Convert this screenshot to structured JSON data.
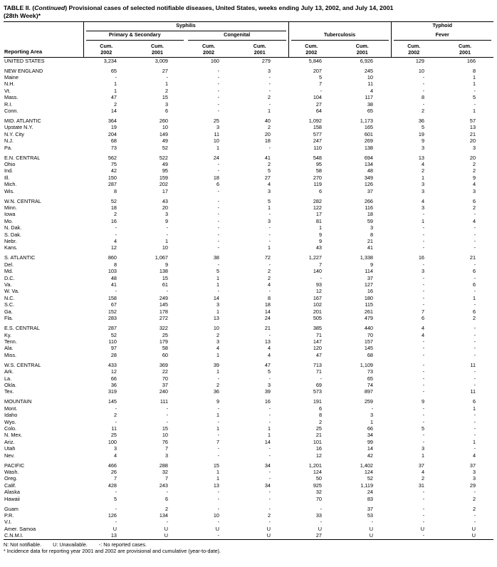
{
  "title": {
    "line1_pre": "TABLE II. (",
    "line1_italic": "Continued",
    "line1_post": ") Provisional cases of selected notifiable diseases, United States, weeks ending July 13, 2002, and July 14, 2001",
    "line2": "(28th Week)*"
  },
  "table": {
    "reporting_area_label": "Reporting Area",
    "groups": {
      "syphilis": "Syphilis",
      "primary_secondary": "Primary & Secondary",
      "congenital": "Congenital",
      "tuberculosis": "Tuberculosis",
      "typhoid_line1": "Typhoid",
      "typhoid_line2": "Fever"
    },
    "col_header": {
      "cum": "Cum.",
      "years": [
        "2002",
        "2001",
        "2002",
        "2001",
        "2002",
        "2001",
        "2002",
        "2001"
      ]
    },
    "rows": [
      {
        "area": "UNITED STATES",
        "section": true,
        "values": [
          "3,234",
          "3,009",
          "160",
          "279",
          "5,846",
          "6,926",
          "129",
          "166"
        ]
      },
      {
        "area": "NEW ENGLAND",
        "section": true,
        "spacer": true,
        "values": [
          "65",
          "27",
          "-",
          "3",
          "207",
          "245",
          "10",
          "8"
        ]
      },
      {
        "area": "Maine",
        "values": [
          "-",
          "-",
          "-",
          "-",
          "5",
          "10",
          "-",
          "1"
        ]
      },
      {
        "area": "N.H.",
        "values": [
          "1",
          "1",
          "-",
          "-",
          "7",
          "11",
          "-",
          "1"
        ]
      },
      {
        "area": "Vt.",
        "values": [
          "1",
          "2",
          "-",
          "-",
          "-",
          "4",
          "-",
          "-"
        ]
      },
      {
        "area": "Mass.",
        "values": [
          "47",
          "15",
          "-",
          "2",
          "104",
          "117",
          "8",
          "5"
        ]
      },
      {
        "area": "R.I.",
        "values": [
          "2",
          "3",
          "-",
          "-",
          "27",
          "38",
          "-",
          "-"
        ]
      },
      {
        "area": "Conn.",
        "values": [
          "14",
          "6",
          "-",
          "1",
          "64",
          "65",
          "2",
          "1"
        ]
      },
      {
        "area": "MID. ATLANTIC",
        "section": true,
        "spacer": true,
        "values": [
          "364",
          "260",
          "25",
          "40",
          "1,092",
          "1,173",
          "36",
          "57"
        ]
      },
      {
        "area": "Upstate N.Y.",
        "values": [
          "19",
          "10",
          "3",
          "2",
          "158",
          "165",
          "5",
          "13"
        ]
      },
      {
        "area": "N.Y. City",
        "values": [
          "204",
          "149",
          "11",
          "20",
          "577",
          "601",
          "19",
          "21"
        ]
      },
      {
        "area": "N.J.",
        "values": [
          "68",
          "49",
          "10",
          "18",
          "247",
          "269",
          "9",
          "20"
        ]
      },
      {
        "area": "Pa.",
        "values": [
          "73",
          "52",
          "1",
          "-",
          "110",
          "138",
          "3",
          "3"
        ]
      },
      {
        "area": "E.N. CENTRAL",
        "section": true,
        "spacer": true,
        "values": [
          "562",
          "522",
          "24",
          "41",
          "548",
          "694",
          "13",
          "20"
        ]
      },
      {
        "area": "Ohio",
        "values": [
          "75",
          "49",
          "-",
          "2",
          "95",
          "134",
          "4",
          "2"
        ]
      },
      {
        "area": "Ind.",
        "values": [
          "42",
          "95",
          "-",
          "5",
          "58",
          "48",
          "2",
          "2"
        ]
      },
      {
        "area": "Ill.",
        "values": [
          "150",
          "159",
          "18",
          "27",
          "270",
          "349",
          "1",
          "9"
        ]
      },
      {
        "area": "Mich.",
        "values": [
          "287",
          "202",
          "6",
          "4",
          "119",
          "126",
          "3",
          "4"
        ]
      },
      {
        "area": "Wis.",
        "values": [
          "8",
          "17",
          "-",
          "3",
          "6",
          "37",
          "3",
          "3"
        ]
      },
      {
        "area": "W.N. CENTRAL",
        "section": true,
        "spacer": true,
        "values": [
          "52",
          "43",
          "-",
          "5",
          "282",
          "266",
          "4",
          "6"
        ]
      },
      {
        "area": "Minn.",
        "values": [
          "18",
          "20",
          "-",
          "1",
          "122",
          "116",
          "3",
          "2"
        ]
      },
      {
        "area": "Iowa",
        "values": [
          "2",
          "3",
          "-",
          "-",
          "17",
          "18",
          "-",
          "-"
        ]
      },
      {
        "area": "Mo.",
        "values": [
          "16",
          "9",
          "-",
          "3",
          "81",
          "59",
          "1",
          "4"
        ]
      },
      {
        "area": "N. Dak.",
        "values": [
          "-",
          "-",
          "-",
          "-",
          "1",
          "3",
          "-",
          "-"
        ]
      },
      {
        "area": "S. Dak.",
        "values": [
          "-",
          "-",
          "-",
          "-",
          "9",
          "8",
          "-",
          "-"
        ]
      },
      {
        "area": "Nebr.",
        "values": [
          "4",
          "1",
          "-",
          "-",
          "9",
          "21",
          "-",
          "-"
        ]
      },
      {
        "area": "Kans.",
        "values": [
          "12",
          "10",
          "-",
          "1",
          "43",
          "41",
          "-",
          "-"
        ]
      },
      {
        "area": "S. ATLANTIC",
        "section": true,
        "spacer": true,
        "values": [
          "860",
          "1,067",
          "38",
          "72",
          "1,227",
          "1,338",
          "16",
          "21"
        ]
      },
      {
        "area": "Del.",
        "values": [
          "8",
          "9",
          "-",
          "-",
          "7",
          "9",
          "-",
          "-"
        ]
      },
      {
        "area": "Md.",
        "values": [
          "103",
          "138",
          "5",
          "2",
          "140",
          "114",
          "3",
          "6"
        ]
      },
      {
        "area": "D.C.",
        "values": [
          "48",
          "15",
          "1",
          "2",
          "-",
          "37",
          "-",
          "-"
        ]
      },
      {
        "area": "Va.",
        "values": [
          "41",
          "61",
          "1",
          "4",
          "93",
          "127",
          "-",
          "6"
        ]
      },
      {
        "area": "W. Va.",
        "values": [
          "-",
          "-",
          "-",
          "-",
          "12",
          "16",
          "-",
          "-"
        ]
      },
      {
        "area": "N.C.",
        "values": [
          "158",
          "249",
          "14",
          "8",
          "167",
          "180",
          "-",
          "1"
        ]
      },
      {
        "area": "S.C.",
        "values": [
          "67",
          "145",
          "3",
          "18",
          "102",
          "115",
          "-",
          "-"
        ]
      },
      {
        "area": "Ga.",
        "values": [
          "152",
          "178",
          "1",
          "14",
          "201",
          "261",
          "7",
          "6"
        ]
      },
      {
        "area": "Fla.",
        "values": [
          "283",
          "272",
          "13",
          "24",
          "505",
          "479",
          "6",
          "2"
        ]
      },
      {
        "area": "E.S. CENTRAL",
        "section": true,
        "spacer": true,
        "values": [
          "287",
          "322",
          "10",
          "21",
          "385",
          "440",
          "4",
          "-"
        ]
      },
      {
        "area": "Ky.",
        "values": [
          "52",
          "25",
          "2",
          "-",
          "71",
          "70",
          "4",
          "-"
        ]
      },
      {
        "area": "Tenn.",
        "values": [
          "110",
          "179",
          "3",
          "13",
          "147",
          "157",
          "-",
          "-"
        ]
      },
      {
        "area": "Ala.",
        "values": [
          "97",
          "58",
          "4",
          "4",
          "120",
          "145",
          "-",
          "-"
        ]
      },
      {
        "area": "Miss.",
        "values": [
          "28",
          "60",
          "1",
          "4",
          "47",
          "68",
          "-",
          "-"
        ]
      },
      {
        "area": "W.S. CENTRAL",
        "section": true,
        "spacer": true,
        "values": [
          "433",
          "369",
          "39",
          "47",
          "713",
          "1,109",
          "-",
          "11"
        ]
      },
      {
        "area": "Ark.",
        "values": [
          "12",
          "22",
          "1",
          "5",
          "71",
          "73",
          "-",
          "-"
        ]
      },
      {
        "area": "La.",
        "values": [
          "66",
          "70",
          "-",
          "-",
          "-",
          "65",
          "-",
          "-"
        ]
      },
      {
        "area": "Okla.",
        "values": [
          "36",
          "37",
          "2",
          "3",
          "69",
          "74",
          "-",
          "-"
        ]
      },
      {
        "area": "Tex.",
        "values": [
          "319",
          "240",
          "36",
          "39",
          "573",
          "897",
          "-",
          "11"
        ]
      },
      {
        "area": "MOUNTAIN",
        "section": true,
        "spacer": true,
        "values": [
          "145",
          "111",
          "9",
          "16",
          "191",
          "259",
          "9",
          "6"
        ]
      },
      {
        "area": "Mont.",
        "values": [
          "-",
          "-",
          "-",
          "-",
          "6",
          "-",
          "-",
          "1"
        ]
      },
      {
        "area": "Idaho",
        "values": [
          "2",
          "-",
          "1",
          "-",
          "8",
          "3",
          "-",
          "-"
        ]
      },
      {
        "area": "Wyo.",
        "values": [
          "-",
          "-",
          "-",
          "-",
          "2",
          "1",
          "-",
          "-"
        ]
      },
      {
        "area": "Colo.",
        "values": [
          "11",
          "15",
          "1",
          "1",
          "25",
          "66",
          "5",
          "-"
        ]
      },
      {
        "area": "N. Mex.",
        "values": [
          "25",
          "10",
          "-",
          "1",
          "21",
          "34",
          "-",
          "-"
        ]
      },
      {
        "area": "Ariz.",
        "values": [
          "100",
          "76",
          "7",
          "14",
          "101",
          "99",
          "-",
          "1"
        ]
      },
      {
        "area": "Utah",
        "values": [
          "3",
          "7",
          "-",
          "-",
          "16",
          "14",
          "3",
          "-"
        ]
      },
      {
        "area": "Nev.",
        "values": [
          "4",
          "3",
          "-",
          "-",
          "12",
          "42",
          "1",
          "4"
        ]
      },
      {
        "area": "PACIFIC",
        "section": true,
        "spacer": true,
        "values": [
          "466",
          "288",
          "15",
          "34",
          "1,201",
          "1,402",
          "37",
          "37"
        ]
      },
      {
        "area": "Wash.",
        "values": [
          "26",
          "32",
          "1",
          "-",
          "124",
          "124",
          "4",
          "3"
        ]
      },
      {
        "area": "Oreg.",
        "values": [
          "7",
          "7",
          "1",
          "-",
          "50",
          "52",
          "2",
          "3"
        ]
      },
      {
        "area": "Calif.",
        "values": [
          "428",
          "243",
          "13",
          "34",
          "925",
          "1,119",
          "31",
          "29"
        ]
      },
      {
        "area": "Alaska",
        "values": [
          "-",
          "-",
          "-",
          "-",
          "32",
          "24",
          "-",
          "-"
        ]
      },
      {
        "area": "Hawaii",
        "values": [
          "5",
          "6",
          "-",
          "-",
          "70",
          "83",
          "-",
          "2"
        ]
      },
      {
        "area": "Guam",
        "spacer": true,
        "values": [
          "-",
          "2",
          "-",
          "-",
          "-",
          "37",
          "-",
          "2"
        ]
      },
      {
        "area": "P.R.",
        "values": [
          "126",
          "134",
          "10",
          "2",
          "33",
          "53",
          "-",
          "-"
        ]
      },
      {
        "area": "V.I.",
        "values": [
          "-",
          "-",
          "-",
          "-",
          "-",
          "-",
          "-",
          "-"
        ]
      },
      {
        "area": "Amer. Samoa",
        "values": [
          "U",
          "U",
          "U",
          "U",
          "U",
          "U",
          "U",
          "U"
        ]
      },
      {
        "area": "C.N.M.I.",
        "values": [
          "13",
          "U",
          "-",
          "U",
          "27",
          "U",
          "-",
          "U"
        ]
      }
    ]
  },
  "footnotes": {
    "items": [
      "N: Not notifiable.",
      "U: Unavailable.",
      "-: No reported cases."
    ],
    "note2": "* Incidence data for reporting year 2001 and 2002 are provisional and cumulative (year-to-date)."
  }
}
